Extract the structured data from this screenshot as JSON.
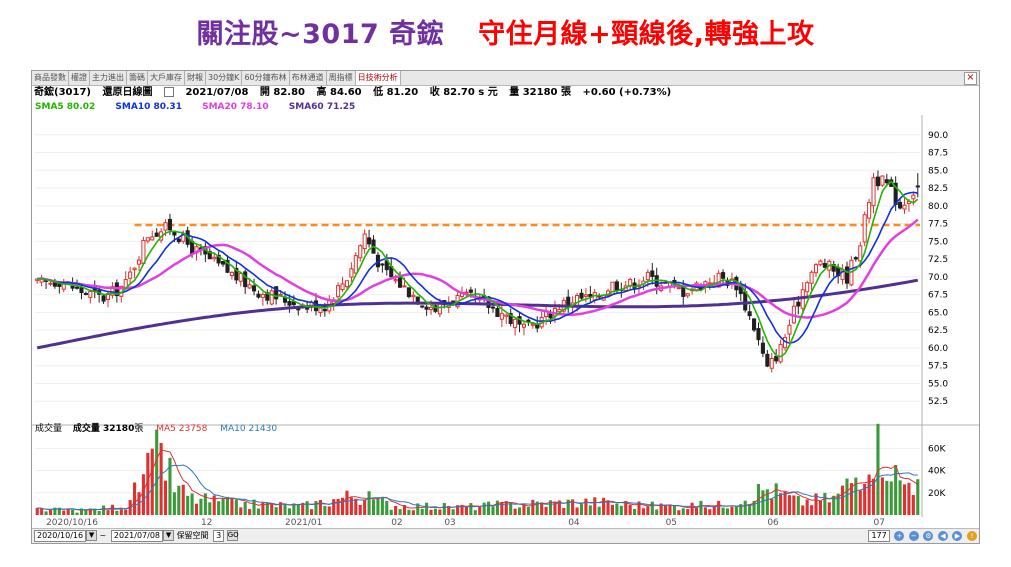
{
  "headline": {
    "part1": "關注股~3017 奇鋐",
    "part2": "守住月線+頸線後,轉強上攻"
  },
  "tabs": [
    "商品發數",
    "權證",
    "主力進出",
    "籌碼",
    "大戶庫存",
    "財報",
    "30分鐘K",
    "60分鐘布林",
    "布林通道",
    "周指標",
    "日技術分析"
  ],
  "info": {
    "name": "奇鋐(3017)",
    "mode": "還原日線圖",
    "date": "2021/07/08",
    "open": "開 82.80",
    "high": "高 84.60",
    "low": "低 81.20",
    "close": "收 82.70 s 元",
    "volume": "量 32180 張",
    "change": "+0.60 (+0.73%)"
  },
  "ma_legend": [
    {
      "text": "SMA5 80.02",
      "color": "#22b500"
    },
    {
      "text": "SMA10 80.31",
      "color": "#1030e0"
    },
    {
      "text": "SMA20 78.10",
      "color": "#e040e0"
    },
    {
      "text": "SMA60 71.25",
      "color": "#503090"
    }
  ],
  "vol_legend": {
    "title": "成交量",
    "vol": "成交量 32180",
    "unit": "張",
    "ma5": "MA5 23758",
    "ma10": "MA10 21430"
  },
  "bottom": {
    "from": "2020/10/16",
    "to": "2021/07/08",
    "keep": "保留空間",
    "keep_val": "3",
    "count": "177"
  },
  "colors": {
    "up": "#e03030",
    "down": "#202020",
    "vol_up": "#e03030",
    "vol_down": "#3a9a3a",
    "neck": "#ff8c1a"
  },
  "chart_data": {
    "type": "candlestick",
    "price_axis": {
      "ylim": [
        50,
        92.5
      ],
      "ticks": [
        "90.0",
        "87.5",
        "85.0",
        "82.5",
        "80.0",
        "77.5",
        "75.0",
        "72.5",
        "70.0",
        "67.5",
        "65.0",
        "62.5",
        "60.0",
        "57.5",
        "55.0",
        "52.5"
      ]
    },
    "volume_axis": {
      "ylim": [
        0,
        72000
      ],
      "ticks": [
        "60K",
        "40K",
        "20K"
      ]
    },
    "x_labels": [
      "2020/10/16",
      "12",
      "2021/01",
      "02",
      "03",
      "04",
      "05",
      "06",
      "07"
    ],
    "neckline": 77.3,
    "price_anchors": [
      [
        0,
        69
      ],
      [
        5,
        69.5
      ],
      [
        10,
        68
      ],
      [
        15,
        67
      ],
      [
        20,
        69
      ],
      [
        25,
        76
      ],
      [
        30,
        77
      ],
      [
        35,
        74
      ],
      [
        40,
        72
      ],
      [
        45,
        70
      ],
      [
        50,
        68
      ],
      [
        55,
        67
      ],
      [
        60,
        66
      ],
      [
        65,
        66
      ],
      [
        70,
        70
      ],
      [
        74,
        76
      ],
      [
        78,
        71
      ],
      [
        82,
        69
      ],
      [
        86,
        67
      ],
      [
        90,
        65.5
      ],
      [
        94,
        67
      ],
      [
        98,
        67
      ],
      [
        102,
        66
      ],
      [
        106,
        64.5
      ],
      [
        110,
        62.5
      ],
      [
        114,
        64
      ],
      [
        118,
        66
      ],
      [
        122,
        67
      ],
      [
        126,
        67
      ],
      [
        130,
        69
      ],
      [
        134,
        69
      ],
      [
        138,
        70
      ],
      [
        142,
        69
      ],
      [
        146,
        68
      ],
      [
        150,
        69
      ],
      [
        154,
        70
      ],
      [
        158,
        69
      ],
      [
        162,
        63
      ],
      [
        165,
        57
      ],
      [
        168,
        60
      ],
      [
        171,
        65
      ],
      [
        174,
        70
      ],
      [
        177,
        72
      ],
      [
        180,
        71
      ],
      [
        183,
        70
      ],
      [
        186,
        75
      ],
      [
        189,
        84
      ],
      [
        192,
        83
      ],
      [
        195,
        80
      ],
      [
        199,
        82.7
      ]
    ],
    "volume_anchors": [
      [
        0,
        5
      ],
      [
        10,
        4
      ],
      [
        20,
        8
      ],
      [
        25,
        38
      ],
      [
        28,
        58
      ],
      [
        31,
        25
      ],
      [
        35,
        15
      ],
      [
        45,
        10
      ],
      [
        60,
        8
      ],
      [
        72,
        18
      ],
      [
        80,
        9
      ],
      [
        95,
        7
      ],
      [
        110,
        10
      ],
      [
        125,
        12
      ],
      [
        140,
        8
      ],
      [
        155,
        9
      ],
      [
        162,
        20
      ],
      [
        165,
        24
      ],
      [
        172,
        12
      ],
      [
        180,
        15
      ],
      [
        185,
        35
      ],
      [
        189,
        65
      ],
      [
        192,
        55
      ],
      [
        195,
        28
      ],
      [
        199,
        32
      ]
    ],
    "series": [
      {
        "name": "SMA5",
        "value": 80.02
      },
      {
        "name": "SMA10",
        "value": 80.31
      },
      {
        "name": "SMA20",
        "value": 78.1
      },
      {
        "name": "SMA60",
        "value": 71.25
      }
    ]
  }
}
